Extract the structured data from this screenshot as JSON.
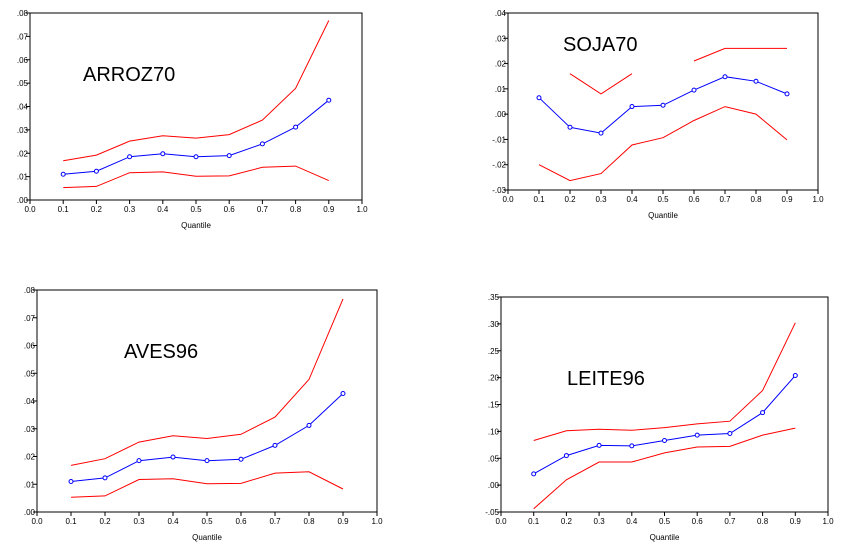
{
  "chart_data": [
    {
      "type": "line",
      "title": "ARROZ70",
      "xlabel": "Quantile",
      "ylabel": "",
      "xlim": [
        0.0,
        1.0
      ],
      "ylim": [
        0.0,
        0.08
      ],
      "x_ticks": [
        "0.0",
        "0.1",
        "0.2",
        "0.3",
        "0.4",
        "0.5",
        "0.6",
        "0.7",
        "0.8",
        "0.9",
        "1.0"
      ],
      "y_ticks": [
        ".00",
        ".01",
        ".02",
        ".03",
        ".04",
        ".05",
        ".06",
        ".07",
        ".08"
      ],
      "x": [
        0.1,
        0.2,
        0.3,
        0.4,
        0.5,
        0.6,
        0.7,
        0.8,
        0.9
      ],
      "series": [
        {
          "values": [
            0.0168,
            0.0192,
            0.0252,
            0.0275,
            0.0265,
            0.028,
            0.0342,
            0.0478,
            0.0768
          ],
          "color": "#ff0000",
          "markers": false
        },
        {
          "values": [
            0.011,
            0.0123,
            0.0185,
            0.0198,
            0.0185,
            0.019,
            0.024,
            0.0312,
            0.0427
          ],
          "color": "#0000ff",
          "markers": true
        },
        {
          "values": [
            0.0053,
            0.0058,
            0.0117,
            0.012,
            0.0102,
            0.0103,
            0.014,
            0.0145,
            0.0083
          ],
          "color": "#ff0000",
          "markers": false
        }
      ]
    },
    {
      "type": "line",
      "title": "SOJA70",
      "xlabel": "Quantile",
      "ylabel": "",
      "xlim": [
        0.0,
        1.0
      ],
      "ylim": [
        -0.03,
        0.04
      ],
      "x_ticks": [
        "0.0",
        "0.1",
        "0.2",
        "0.3",
        "0.4",
        "0.5",
        "0.6",
        "0.7",
        "0.8",
        "0.9",
        "1.0"
      ],
      "y_ticks": [
        "-.03",
        "-.02",
        "-.01",
        ".00",
        ".01",
        ".02",
        ".03",
        ".04"
      ],
      "x": [
        0.1,
        0.2,
        0.3,
        0.4,
        0.5,
        0.6,
        0.7,
        0.8,
        0.9
      ],
      "series": [
        {
          "values": [
            null,
            0.016,
            0.008,
            0.016,
            null,
            0.021,
            0.026,
            0.026,
            0.026
          ],
          "color": "#ff0000",
          "markers": false
        },
        {
          "values": [
            0.0065,
            -0.0052,
            -0.0075,
            0.003,
            0.0035,
            0.0095,
            0.0148,
            0.013,
            0.008
          ],
          "color": "#0000ff",
          "markers": true
        },
        {
          "values": [
            -0.02,
            -0.0263,
            -0.0235,
            -0.0122,
            -0.0093,
            -0.0025,
            0.003,
            0.0,
            -0.0102
          ],
          "color": "#ff0000",
          "markers": false
        }
      ]
    },
    {
      "type": "line",
      "title": "AVES96",
      "xlabel": "Quantile",
      "ylabel": "",
      "xlim": [
        0.0,
        1.0
      ],
      "ylim": [
        0.0,
        0.08
      ],
      "x_ticks": [
        "0.0",
        "0.1",
        "0.2",
        "0.3",
        "0.4",
        "0.5",
        "0.6",
        "0.7",
        "0.8",
        "0.9",
        "1.0"
      ],
      "y_ticks": [
        ".00",
        ".01",
        ".02",
        ".03",
        ".04",
        ".05",
        ".06",
        ".07",
        ".08"
      ],
      "x": [
        0.1,
        0.2,
        0.3,
        0.4,
        0.5,
        0.6,
        0.7,
        0.8,
        0.9
      ],
      "series": [
        {
          "values": [
            0.0168,
            0.0192,
            0.0252,
            0.0275,
            0.0265,
            0.028,
            0.0342,
            0.0478,
            0.0768
          ],
          "color": "#ff0000",
          "markers": false
        },
        {
          "values": [
            0.011,
            0.0123,
            0.0185,
            0.0198,
            0.0185,
            0.019,
            0.024,
            0.0312,
            0.0427
          ],
          "color": "#0000ff",
          "markers": true
        },
        {
          "values": [
            0.0053,
            0.0058,
            0.0117,
            0.012,
            0.0102,
            0.0103,
            0.014,
            0.0145,
            0.0083
          ],
          "color": "#ff0000",
          "markers": false
        }
      ]
    },
    {
      "type": "line",
      "title": "LEITE96",
      "xlabel": "Quantile",
      "ylabel": "",
      "xlim": [
        0.0,
        1.0
      ],
      "ylim": [
        -0.05,
        0.35
      ],
      "x_ticks": [
        "0.0",
        "0.1",
        "0.2",
        "0.3",
        "0.4",
        "0.5",
        "0.6",
        "0.7",
        "0.8",
        "0.9",
        "1.0"
      ],
      "y_ticks": [
        "-.05",
        ".00",
        ".05",
        ".10",
        ".15",
        ".20",
        ".25",
        ".30",
        ".35"
      ],
      "x": [
        0.1,
        0.2,
        0.3,
        0.4,
        0.5,
        0.6,
        0.7,
        0.8,
        0.9
      ],
      "series": [
        {
          "values": [
            0.083,
            0.101,
            0.104,
            0.102,
            0.107,
            0.114,
            0.119,
            0.176,
            0.302
          ],
          "color": "#ff0000",
          "markers": false
        },
        {
          "values": [
            0.021,
            0.055,
            0.074,
            0.073,
            0.083,
            0.093,
            0.096,
            0.135,
            0.204
          ],
          "color": "#0000ff",
          "markers": true
        },
        {
          "values": [
            -0.044,
            0.01,
            0.043,
            0.043,
            0.06,
            0.071,
            0.072,
            0.093,
            0.106
          ],
          "color": "#ff0000",
          "markers": false
        }
      ]
    }
  ]
}
